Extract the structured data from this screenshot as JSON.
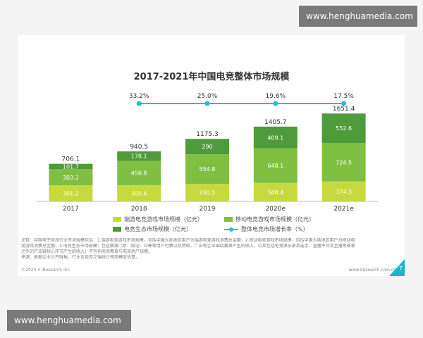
{
  "watermark": {
    "top": "www.henghuamedia.com",
    "bottom": "www.henghuamedia.com"
  },
  "colors": {
    "pc": "#c6d93f",
    "mobile": "#7fc043",
    "ecosystem": "#4f9a3a",
    "growth": "#2bb9d3"
  },
  "chart_data": {
    "type": "bar",
    "title": "2017-2021年中国电竞整体市场规模",
    "categories": [
      "2017",
      "2018",
      "2019",
      "2020e",
      "2021e"
    ],
    "series": [
      {
        "name": "端游电竞游戏市场规模（亿元）",
        "values": [
          301.2,
          305.6,
          330.5,
          348.4,
          374.3
        ]
      },
      {
        "name": "移动电竞游戏市场规模（亿元）",
        "values": [
          303.2,
          456.8,
          554.8,
          648.1,
          724.5
        ]
      },
      {
        "name": "电竞生态市场规模（亿元）",
        "values": [
          101.7,
          178.1,
          290.0,
          409.1,
          552.6
        ]
      }
    ],
    "totals": [
      706.1,
      940.5,
      1175.3,
      1405.7,
      1651.4
    ],
    "growth": {
      "name": "整体电竞市场增长率（%）",
      "values": [
        "",
        "33.2%",
        "25.0%",
        "19.6%",
        "17.5%"
      ]
    },
    "ylim": [
      0,
      1800
    ],
    "stacked": true,
    "legend": "bottom",
    "grid": false
  },
  "note": {
    "lines": [
      "注释：中国电子竞技行业市场规模包括：1.端游电竞游戏市场规模，包括中国大陆地区用户为端游电竞游戏消费总金额；2.移动电竞游戏市场规模，包括中国大陆地区用户为移动电",
      "竞游戏消费总金额；3.电竞生态市场规模：包括赛事门票、周边、众筹等用户付费以及赞助、广告等企业围绕赛事产生的收入，以及包括电竞俱乐部及选手、直播平台及主播等赛事",
      "之外的产业链核心环节产生的收入；不包括电竞教育与电竞地产规模。",
      "来源：根据企业公开财报、行业访谈及艾瑞统计预测模型估算。"
    ]
  },
  "footer": {
    "left": "©2020.4 iResearch Inc.",
    "right": "www.iresearch.com.cn",
    "page": "7"
  }
}
